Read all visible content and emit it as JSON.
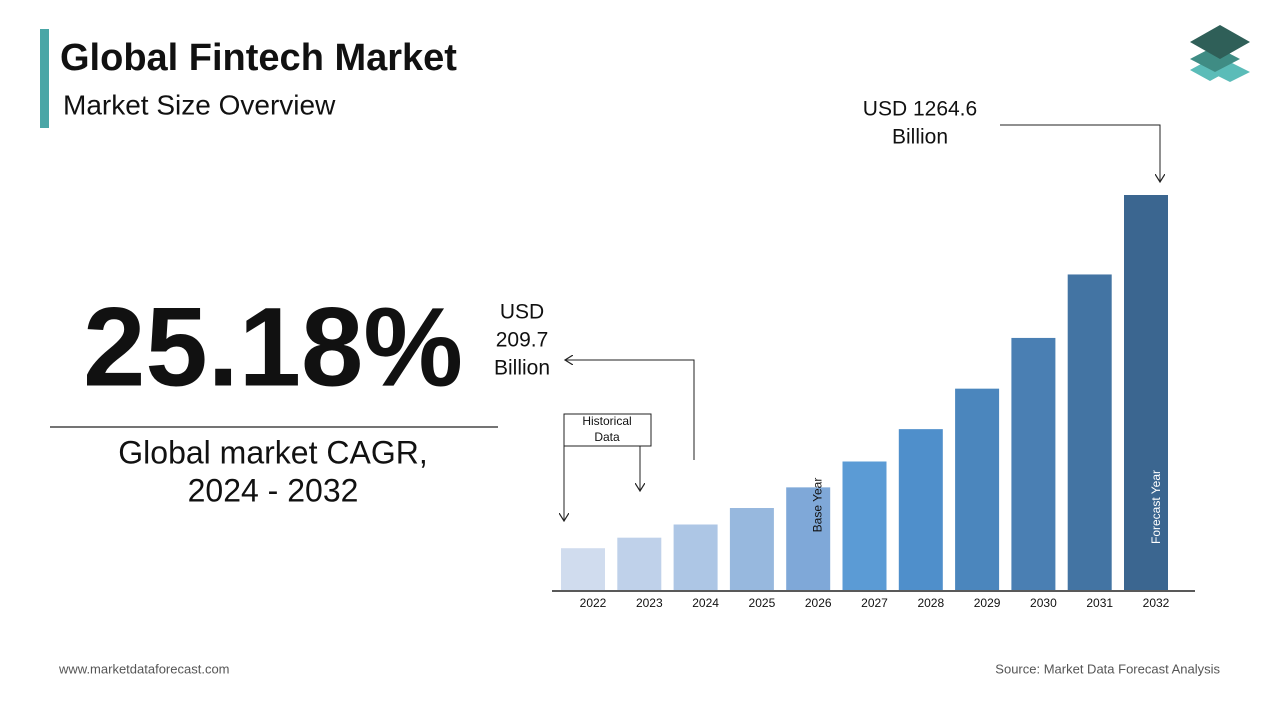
{
  "header": {
    "title": "Global Fintech Market",
    "subtitle": "Market Size Overview"
  },
  "highlight": {
    "value_text": "25.18%",
    "caption_lines": [
      "Global market CAGR,",
      "2024 - 2032"
    ]
  },
  "chart_data": {
    "type": "bar",
    "categories": [
      "2022",
      "2023",
      "2024",
      "2025",
      "2026",
      "2027",
      "2028",
      "2029",
      "2030",
      "2031",
      "2032"
    ],
    "values": [
      133.8,
      167.5,
      209.7,
      262.5,
      328.6,
      411.4,
      515.0,
      644.6,
      807.0,
      1010.2,
      1264.6
    ],
    "colors": [
      "#d0dcee",
      "#bfd1ea",
      "#adc6e5",
      "#97b8de",
      "#7fa8d8",
      "#5b9bd5",
      "#4f8fcb",
      "#4b86bd",
      "#4a7fb3",
      "#4374a3",
      "#3b6690"
    ],
    "annotations": [
      {
        "lines": [
          "USD",
          "209.7",
          "Billion"
        ]
      },
      {
        "lines": [
          "USD 1264.6",
          "Billion"
        ]
      }
    ],
    "historical_label": [
      "Historical",
      "Data"
    ],
    "base_year_label": "Base Year",
    "forecast_year_label": "Forecast Year"
  },
  "footer": {
    "website": "www.marketdataforecast.com",
    "source": "Source: Market Data Forecast Analysis"
  }
}
